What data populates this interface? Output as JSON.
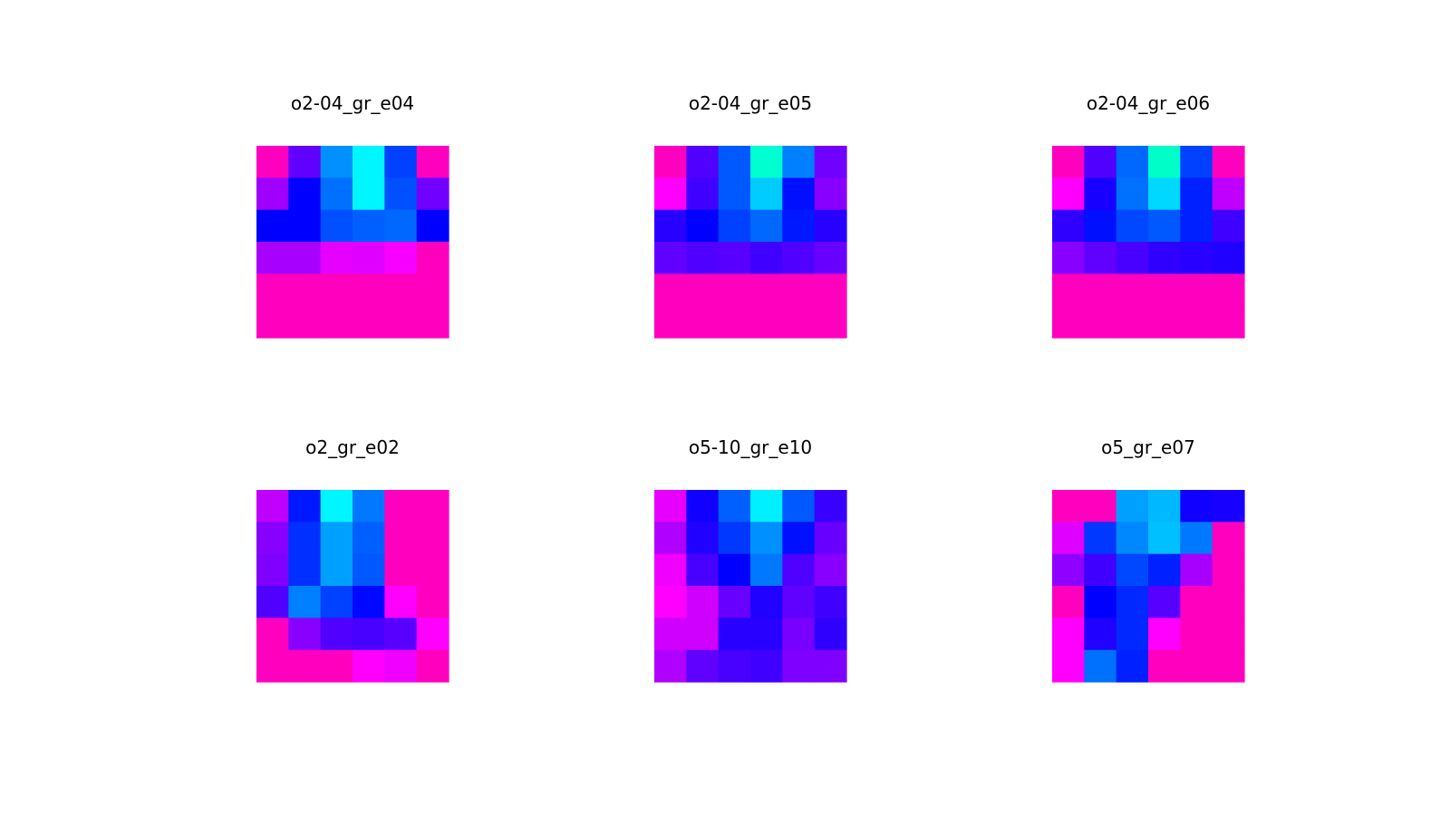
{
  "chart_data": [
    {
      "type": "heatmap",
      "title": "o2-04_gr_e04",
      "rows": 6,
      "cols": 6,
      "cells": [
        [
          "#ff00bf",
          "#6000ff",
          "#0090ff",
          "#00f6ff",
          "#0040ff",
          "#ff00bf"
        ],
        [
          "#a000ff",
          "#0000ff",
          "#0070ff",
          "#00f6ff",
          "#0050ff",
          "#7000ff"
        ],
        [
          "#0000ff",
          "#0000ff",
          "#0050ff",
          "#0060ff",
          "#0068ff",
          "#0000ff"
        ],
        [
          "#a800ff",
          "#a800ff",
          "#e800ff",
          "#e000ff",
          "#f800ff",
          "#ff00bf"
        ],
        [
          "#ff00bf",
          "#ff00bf",
          "#ff00bf",
          "#ff00bf",
          "#ff00bf",
          "#ff00bf"
        ],
        [
          "#ff00bf",
          "#ff00bf",
          "#ff00bf",
          "#ff00bf",
          "#ff00bf",
          "#ff00bf"
        ]
      ]
    },
    {
      "type": "heatmap",
      "title": "o2-04_gr_e05",
      "rows": 6,
      "cols": 6,
      "cells": [
        [
          "#ff00bf",
          "#5000ff",
          "#0058ff",
          "#00ffd0",
          "#0080ff",
          "#7000ff"
        ],
        [
          "#ff00ff",
          "#4000ff",
          "#0058ff",
          "#00ccff",
          "#0010ff",
          "#8800ff"
        ],
        [
          "#2800ff",
          "#0000ff",
          "#0040ff",
          "#0068ff",
          "#0018ff",
          "#2800ff"
        ],
        [
          "#6000ff",
          "#5000ff",
          "#5800ff",
          "#4000ff",
          "#5000ff",
          "#6800ff"
        ],
        [
          "#ff00bf",
          "#ff00bf",
          "#ff00bf",
          "#ff00bf",
          "#ff00bf",
          "#ff00bf"
        ],
        [
          "#ff00bf",
          "#ff00bf",
          "#ff00bf",
          "#ff00bf",
          "#ff00bf",
          "#ff00bf"
        ]
      ]
    },
    {
      "type": "heatmap",
      "title": "o2-04_gr_e06",
      "rows": 6,
      "cols": 6,
      "cells": [
        [
          "#ff00bf",
          "#5000ff",
          "#0068ff",
          "#00ffc8",
          "#0040ff",
          "#ff00bf"
        ],
        [
          "#ff00ff",
          "#1800ff",
          "#0070ff",
          "#00d8ff",
          "#0020ff",
          "#c000ff"
        ],
        [
          "#3000ff",
          "#0010ff",
          "#0048ff",
          "#0058ff",
          "#0020ff",
          "#4000ff"
        ],
        [
          "#8800ff",
          "#6000ff",
          "#4800ff",
          "#3000ff",
          "#2800ff",
          "#2000ff"
        ],
        [
          "#ff00bf",
          "#ff00bf",
          "#ff00bf",
          "#ff00bf",
          "#ff00bf",
          "#ff00bf"
        ],
        [
          "#ff00bf",
          "#ff00bf",
          "#ff00bf",
          "#ff00bf",
          "#ff00bf",
          "#ff00bf"
        ]
      ]
    },
    {
      "type": "heatmap",
      "title": "o2_gr_e02",
      "rows": 6,
      "cols": 6,
      "cells": [
        [
          "#c000ff",
          "#0018ff",
          "#00f6ff",
          "#0078ff",
          "#ff00bf",
          "#ff00bf"
        ],
        [
          "#8800ff",
          "#0030ff",
          "#00a0ff",
          "#0060ff",
          "#ff00bf",
          "#ff00bf"
        ],
        [
          "#8000ff",
          "#0030ff",
          "#00a0ff",
          "#0058ff",
          "#ff00bf",
          "#ff00bf"
        ],
        [
          "#5000ff",
          "#0080ff",
          "#0040ff",
          "#0008ff",
          "#ff00ff",
          "#ff00bf"
        ],
        [
          "#ff00bf",
          "#8800ff",
          "#5000ff",
          "#4800ff",
          "#5800ff",
          "#ff00ff"
        ],
        [
          "#ff00bf",
          "#ff00bf",
          "#ff00bf",
          "#ff00ff",
          "#f000ff",
          "#ff00bf"
        ]
      ]
    },
    {
      "type": "heatmap",
      "title": "o5-10_gr_e10",
      "rows": 6,
      "cols": 6,
      "cells": [
        [
          "#e800ff",
          "#1000ff",
          "#0060ff",
          "#00f0ff",
          "#0058ff",
          "#3800ff"
        ],
        [
          "#b000ff",
          "#2000ff",
          "#0038ff",
          "#0090ff",
          "#0010ff",
          "#6800ff"
        ],
        [
          "#f000ff",
          "#4800ff",
          "#0000ff",
          "#0078ff",
          "#5000ff",
          "#8800ff"
        ],
        [
          "#ff00ff",
          "#d000ff",
          "#6800ff",
          "#2000ff",
          "#6000ff",
          "#4000ff"
        ],
        [
          "#d000ff",
          "#d000ff",
          "#2800ff",
          "#2800ff",
          "#7800ff",
          "#3000ff"
        ],
        [
          "#b000ff",
          "#6000ff",
          "#4800ff",
          "#4000ff",
          "#8000ff",
          "#8000ff"
        ]
      ]
    },
    {
      "type": "heatmap",
      "title": "o5_gr_e07",
      "rows": 6,
      "cols": 6,
      "cells": [
        [
          "#ff00bf",
          "#ff00bf",
          "#00a0ff",
          "#00b8ff",
          "#1000ff",
          "#1800ff"
        ],
        [
          "#e000ff",
          "#0038ff",
          "#0088ff",
          "#00c0ff",
          "#0078ff",
          "#ff00bf"
        ],
        [
          "#9000ff",
          "#4000ff",
          "#0048ff",
          "#0020ff",
          "#a800ff",
          "#ff00bf"
        ],
        [
          "#ff00bf",
          "#0000ff",
          "#0028ff",
          "#5800ff",
          "#ff00bf",
          "#ff00bf"
        ],
        [
          "#ff00ff",
          "#2000ff",
          "#0028ff",
          "#ff00ff",
          "#ff00bf",
          "#ff00bf"
        ],
        [
          "#ff00ff",
          "#0070ff",
          "#0020ff",
          "#ff00bf",
          "#ff00bf",
          "#ff00bf"
        ]
      ]
    }
  ]
}
